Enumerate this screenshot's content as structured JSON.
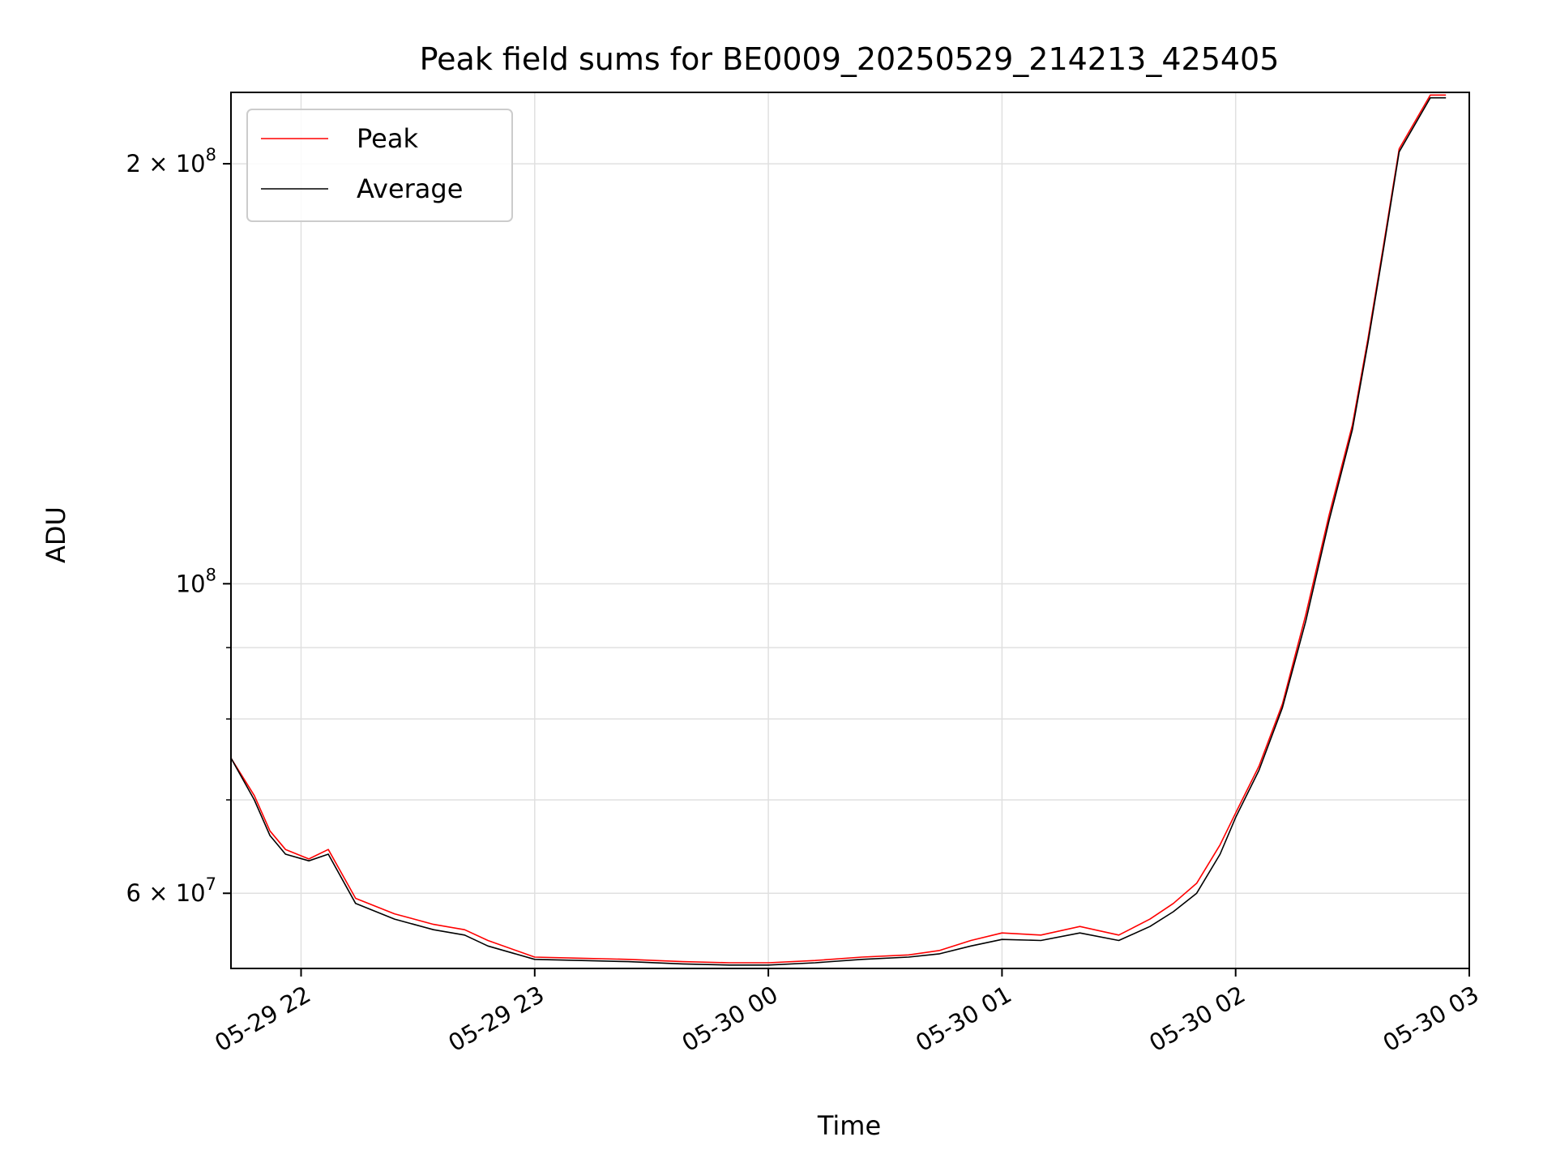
{
  "chart_data": {
    "type": "line",
    "title": "Peak field sums for BE0009_20250529_214213_425405",
    "xlabel": "Time",
    "ylabel": "ADU",
    "y_scale": "log",
    "grid": true,
    "legend_position": "upper-left",
    "xlim": [
      "2025-05-29 21:42",
      "2025-05-30 03:00"
    ],
    "ylim": [
      53000000,
      225000000
    ],
    "x_ticks": [
      "05-29 22",
      "05-29 23",
      "05-30 00",
      "05-30 01",
      "05-30 02",
      "05-30 03"
    ],
    "y_ticks": [
      {
        "value": 60000000,
        "base": "6 × 10",
        "exp": "7"
      },
      {
        "value": 100000000,
        "base": "10",
        "exp": "8"
      },
      {
        "value": 200000000,
        "base": "2 × 10",
        "exp": "8"
      }
    ],
    "colors": {
      "peak": "#ff0000",
      "average": "#000000",
      "grid": "#e0e0e0"
    },
    "series": [
      {
        "name": "Peak",
        "x": [
          "2025-05-29 21:42",
          "2025-05-29 21:48",
          "2025-05-29 21:52",
          "2025-05-29 21:56",
          "2025-05-29 22:02",
          "2025-05-29 22:07",
          "2025-05-29 22:14",
          "2025-05-29 22:24",
          "2025-05-29 22:34",
          "2025-05-29 22:42",
          "2025-05-29 22:48",
          "2025-05-29 23:00",
          "2025-05-29 23:12",
          "2025-05-29 23:24",
          "2025-05-29 23:38",
          "2025-05-29 23:50",
          "2025-05-30 00:00",
          "2025-05-30 00:12",
          "2025-05-30 00:24",
          "2025-05-30 00:36",
          "2025-05-30 00:44",
          "2025-05-30 00:52",
          "2025-05-30 01:00",
          "2025-05-30 01:10",
          "2025-05-30 01:20",
          "2025-05-30 01:30",
          "2025-05-30 01:38",
          "2025-05-30 01:44",
          "2025-05-30 01:50",
          "2025-05-30 01:56",
          "2025-05-30 02:00",
          "2025-05-30 02:06",
          "2025-05-30 02:12",
          "2025-05-30 02:18",
          "2025-05-30 02:24",
          "2025-05-30 02:30",
          "2025-05-30 02:34",
          "2025-05-30 02:38",
          "2025-05-30 02:42",
          "2025-05-30 02:50",
          "2025-05-30 02:54"
        ],
        "y": [
          75000000,
          70500000,
          66500000,
          64500000,
          63500000,
          64500000,
          59500000,
          58000000,
          57000000,
          56500000,
          55500000,
          54000000,
          53900000,
          53800000,
          53600000,
          53500000,
          53500000,
          53700000,
          54000000,
          54200000,
          54600000,
          55500000,
          56200000,
          56000000,
          56800000,
          56000000,
          57500000,
          59000000,
          61000000,
          65000000,
          68500000,
          74000000,
          82000000,
          95000000,
          112000000,
          130000000,
          150000000,
          175000000,
          205000000,
          224000000,
          224000000
        ]
      },
      {
        "name": "Average",
        "x": [
          "2025-05-29 21:42",
          "2025-05-29 21:48",
          "2025-05-29 21:52",
          "2025-05-29 21:56",
          "2025-05-29 22:02",
          "2025-05-29 22:07",
          "2025-05-29 22:14",
          "2025-05-29 22:24",
          "2025-05-29 22:34",
          "2025-05-29 22:42",
          "2025-05-29 22:48",
          "2025-05-29 23:00",
          "2025-05-29 23:12",
          "2025-05-29 23:24",
          "2025-05-29 23:38",
          "2025-05-29 23:50",
          "2025-05-30 00:00",
          "2025-05-30 00:12",
          "2025-05-30 00:24",
          "2025-05-30 00:36",
          "2025-05-30 00:44",
          "2025-05-30 00:52",
          "2025-05-30 01:00",
          "2025-05-30 01:10",
          "2025-05-30 01:20",
          "2025-05-30 01:30",
          "2025-05-30 01:38",
          "2025-05-30 01:44",
          "2025-05-30 01:50",
          "2025-05-30 01:56",
          "2025-05-30 02:00",
          "2025-05-30 02:06",
          "2025-05-30 02:12",
          "2025-05-30 02:18",
          "2025-05-30 02:24",
          "2025-05-30 02:30",
          "2025-05-30 02:34",
          "2025-05-30 02:38",
          "2025-05-30 02:42",
          "2025-05-30 02:50",
          "2025-05-30 02:54"
        ],
        "y": [
          75000000,
          70000000,
          66000000,
          64000000,
          63300000,
          64000000,
          59000000,
          57500000,
          56500000,
          56000000,
          55000000,
          53800000,
          53700000,
          53600000,
          53400000,
          53300000,
          53300000,
          53500000,
          53800000,
          54000000,
          54300000,
          55000000,
          55600000,
          55500000,
          56200000,
          55500000,
          56800000,
          58200000,
          60000000,
          64000000,
          68000000,
          73500000,
          81500000,
          94000000,
          111000000,
          129000000,
          149000000,
          174000000,
          204000000,
          223000000,
          223000000
        ]
      }
    ]
  }
}
